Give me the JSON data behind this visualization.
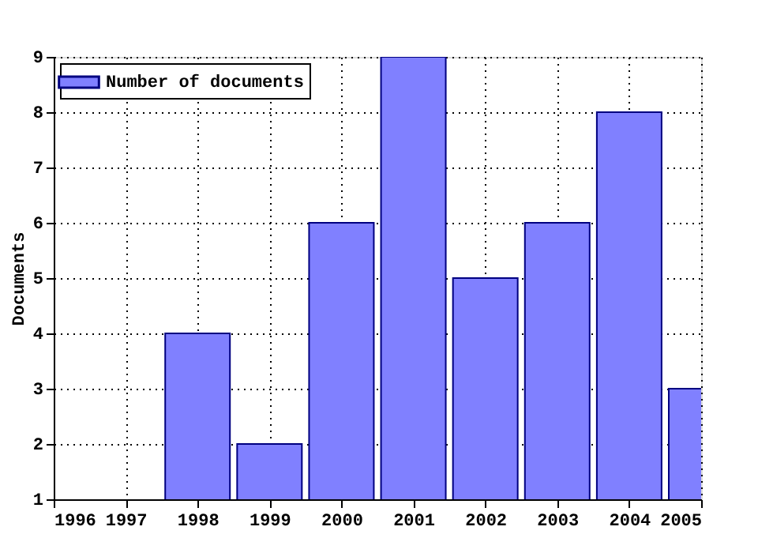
{
  "chart_data": {
    "type": "bar",
    "ylabel": "Documents",
    "x": [
      1998,
      1999,
      2000,
      2001,
      2002,
      2003,
      2004,
      2005
    ],
    "series": [
      {
        "name": "Number of documents",
        "color": "#8080ff",
        "values": [
          4,
          2,
          6,
          9,
          5,
          6,
          8,
          3
        ]
      }
    ],
    "xlim": [
      1996,
      2005
    ],
    "xticks": [
      1996,
      1997,
      1998,
      1999,
      2000,
      2001,
      2002,
      2003,
      2004,
      2005
    ],
    "ylim": [
      1,
      9
    ],
    "yticks": [
      1,
      2,
      3,
      4,
      5,
      6,
      7,
      8,
      9
    ],
    "grid": true,
    "legend": "top left"
  }
}
